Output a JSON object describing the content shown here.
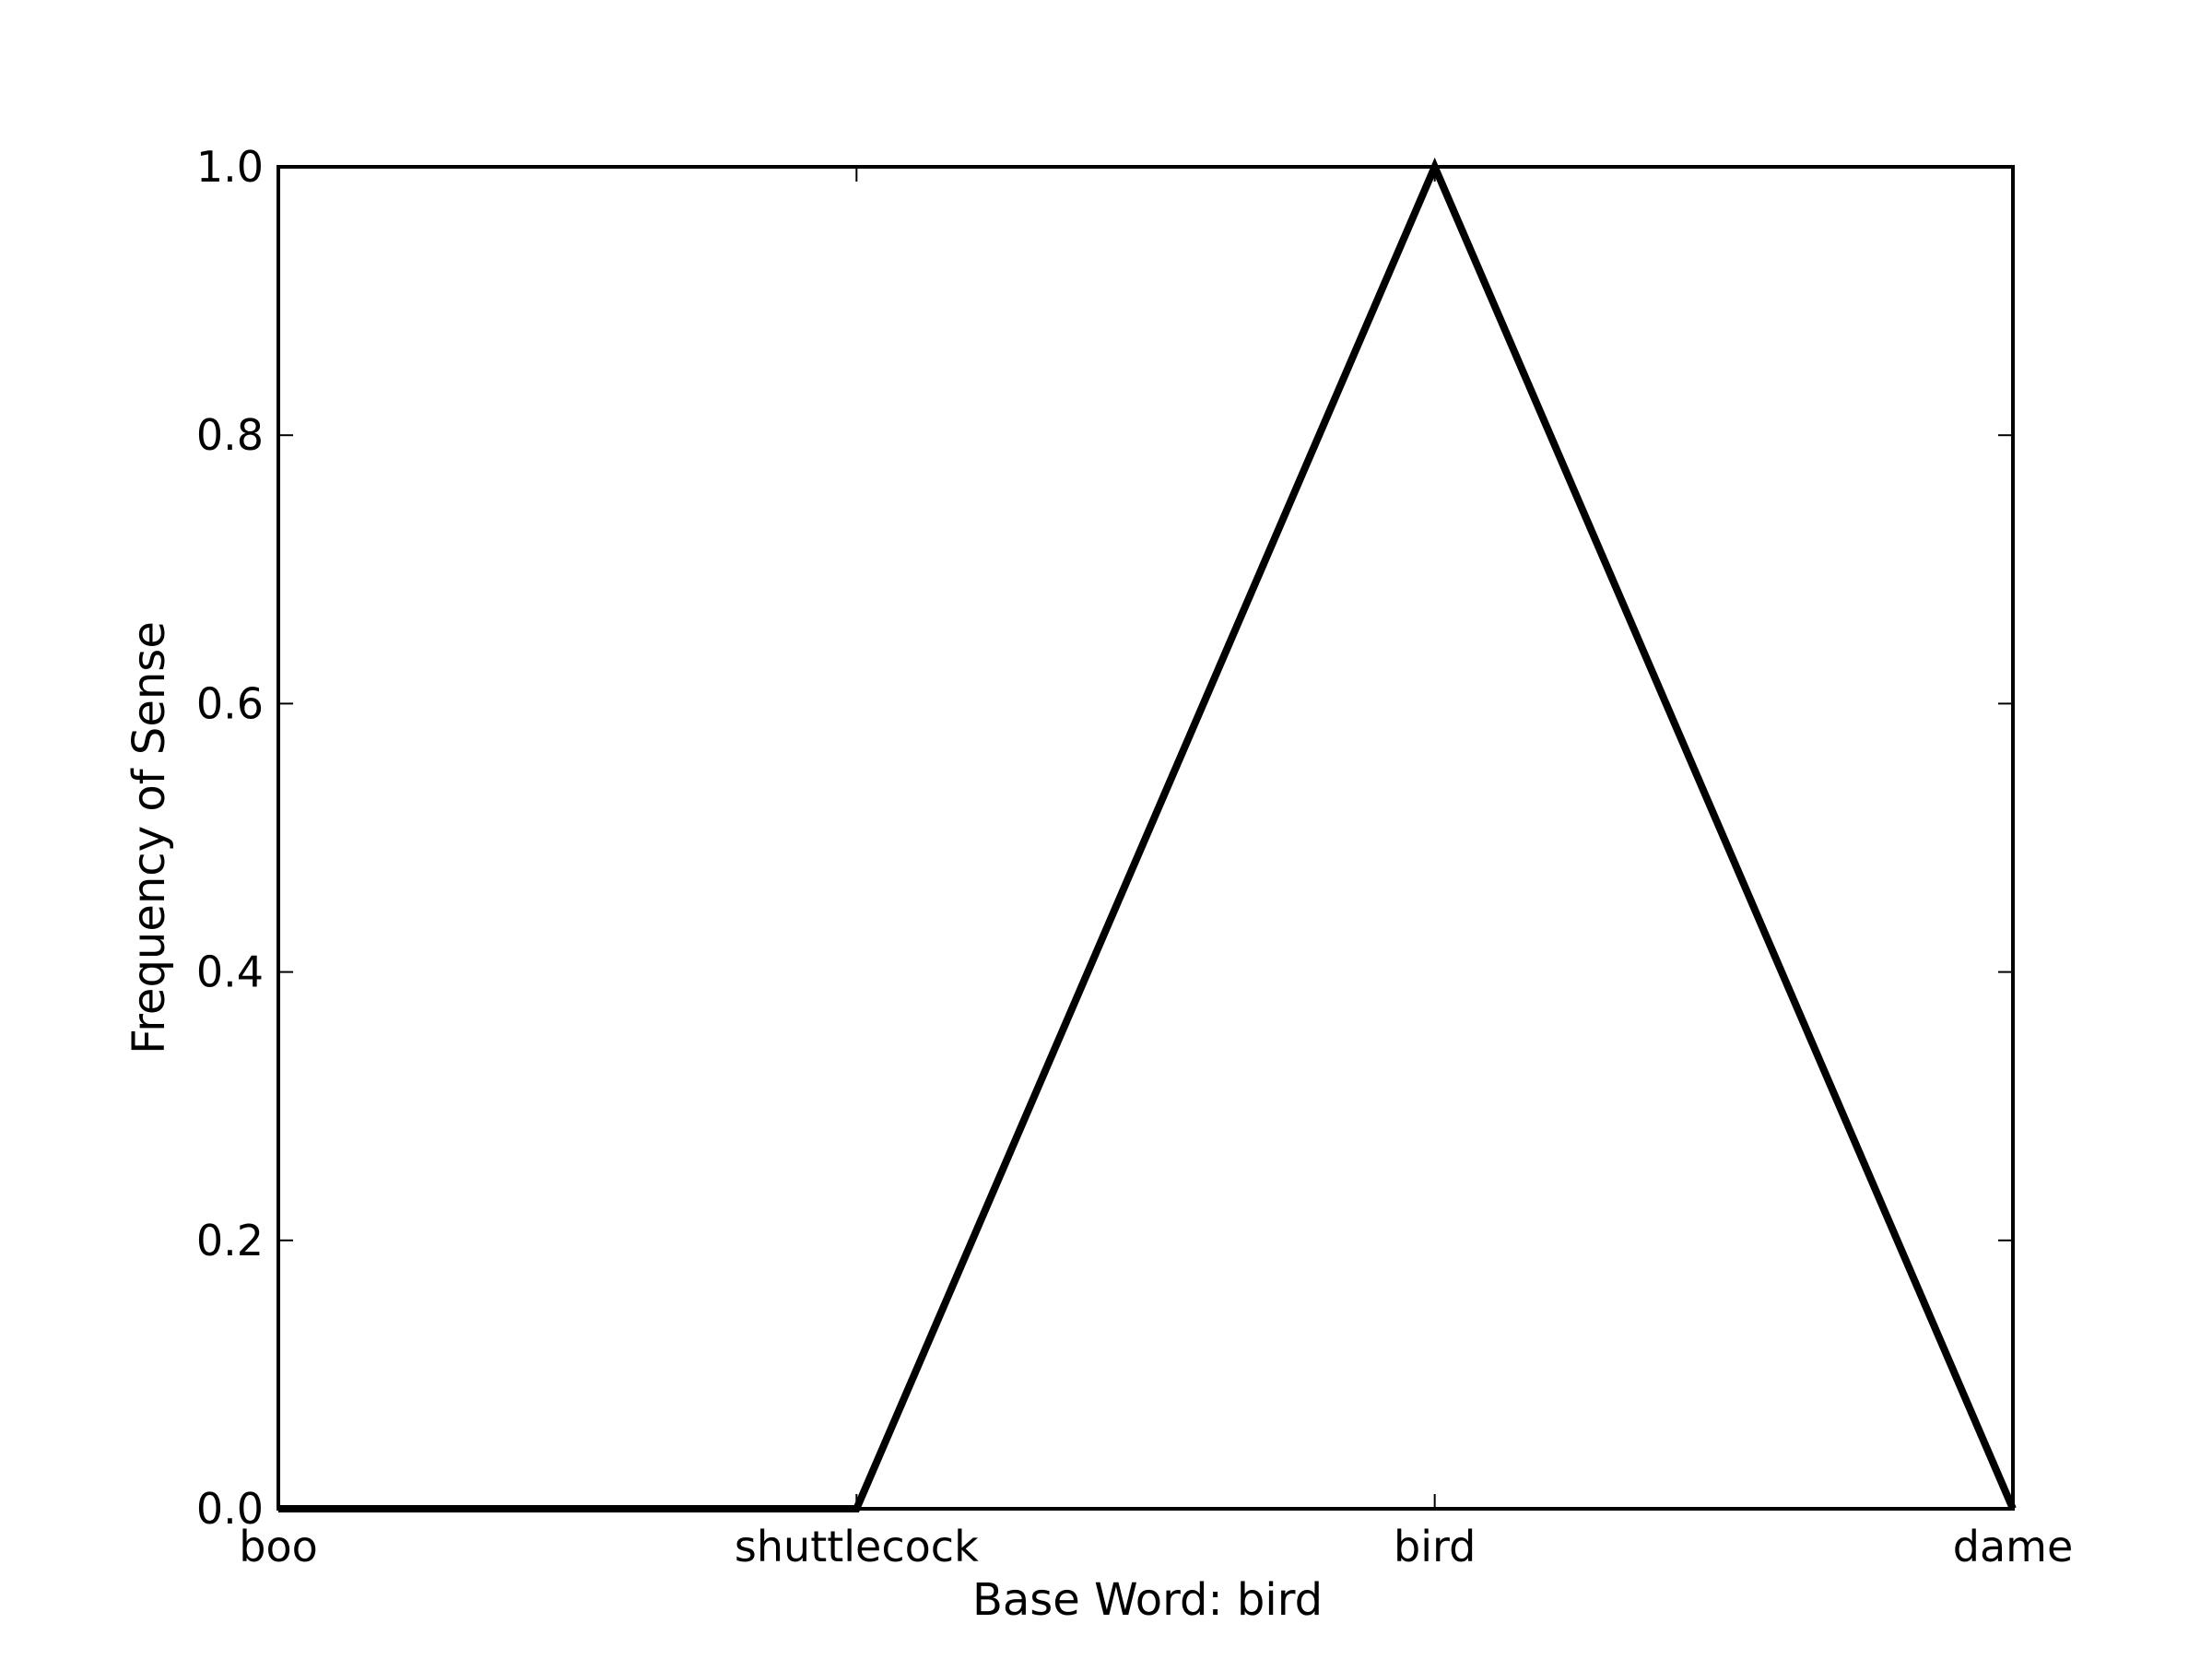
{
  "chart_data": {
    "type": "line",
    "categories": [
      "boo",
      "shuttlecock",
      "bird",
      "dame"
    ],
    "series": [
      {
        "values": [
          0.0,
          0.0,
          1.0,
          0.0
        ]
      }
    ],
    "xlabel": "Base Word: bird",
    "ylabel": "Frequency of Sense",
    "ylim": [
      0.0,
      1.0
    ],
    "yticks": [
      "0.0",
      "0.2",
      "0.4",
      "0.6",
      "0.8",
      "1.0"
    ],
    "grid": false,
    "line_color": "#000000"
  }
}
